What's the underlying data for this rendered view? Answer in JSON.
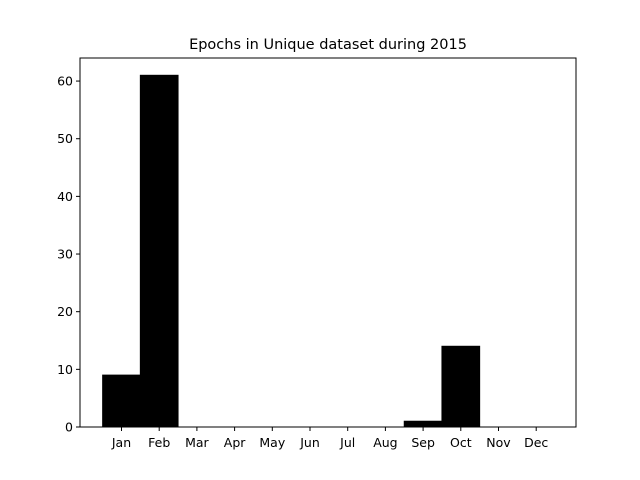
{
  "chart_data": {
    "type": "bar",
    "title": "Epochs in Unique dataset during 2015",
    "xlabel": "",
    "ylabel": "",
    "categories": [
      "Jan",
      "Feb",
      "Mar",
      "Apr",
      "May",
      "Jun",
      "Jul",
      "Aug",
      "Sep",
      "Oct",
      "Nov",
      "Dec"
    ],
    "values": [
      9,
      61,
      0,
      0,
      0,
      0,
      0,
      0,
      1,
      14,
      0,
      0
    ],
    "ylim": [
      0,
      64
    ],
    "yticks": [
      0,
      10,
      20,
      30,
      40,
      50,
      60
    ],
    "grid": false,
    "bar_color": "#000000",
    "edge_color": "#000000"
  }
}
